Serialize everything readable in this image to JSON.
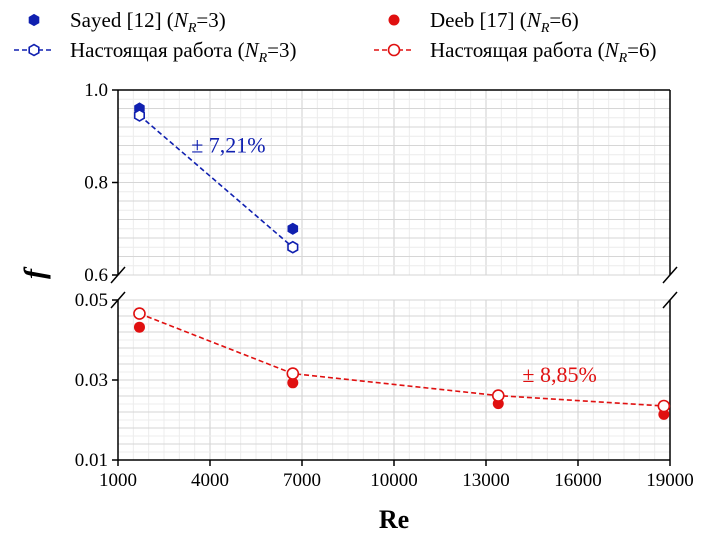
{
  "chart_data": {
    "type": "scatter",
    "xlabel": "Re",
    "ylabel": "f",
    "x_ticks": [
      "1000",
      "4000",
      "7000",
      "10000",
      "13000",
      "16000",
      "19000"
    ],
    "upper_panel": {
      "ylim": [
        0.6,
        1.0
      ],
      "y_ticks": [
        "0.6",
        "0.8",
        "1.0"
      ]
    },
    "lower_panel": {
      "ylim": [
        0.01,
        0.05
      ],
      "y_ticks": [
        "0.01",
        "0.03",
        "0.05"
      ]
    },
    "xlim": [
      1000,
      19000
    ],
    "grid": true,
    "legend_position": "top",
    "series": [
      {
        "name": "Sayed [12] (N_R=3)",
        "legend_main": "Sayed [12] (",
        "legend_var": "N",
        "legend_sub": "R",
        "legend_end": "=3)",
        "color": "#1020b0",
        "marker": "filled-hexagon",
        "line": "none",
        "panel": "upper",
        "points": [
          {
            "x": 1700,
            "y": 0.96
          },
          {
            "x": 6700,
            "y": 0.7
          }
        ]
      },
      {
        "name": "Настоящая работа (N_R=3)",
        "legend_main": "Настоящая работа (",
        "legend_var": "N",
        "legend_sub": "R",
        "legend_end": "=3)",
        "color": "#1020b0",
        "marker": "open-hexagon",
        "line": "dashed",
        "panel": "upper",
        "points": [
          {
            "x": 1700,
            "y": 0.945
          },
          {
            "x": 6700,
            "y": 0.66
          }
        ]
      },
      {
        "name": "Deeb [17] (N_R=6)",
        "legend_main": "Deeb [17] (",
        "legend_var": "N",
        "legend_sub": "R",
        "legend_end": "=6)",
        "color": "#e01010",
        "marker": "filled-circle",
        "line": "none",
        "panel": "lower",
        "points": [
          {
            "x": 1700,
            "y": 0.0432
          },
          {
            "x": 6700,
            "y": 0.0293
          },
          {
            "x": 13400,
            "y": 0.0241
          },
          {
            "x": 18800,
            "y": 0.0214
          }
        ]
      },
      {
        "name": "Настоящая работа (N_R=6)",
        "legend_main": "Настоящая работа (",
        "legend_var": "N",
        "legend_sub": "R",
        "legend_end": "=6)",
        "color": "#e01010",
        "marker": "open-circle",
        "line": "dashed",
        "panel": "lower",
        "points": [
          {
            "x": 1700,
            "y": 0.0466
          },
          {
            "x": 6700,
            "y": 0.0316
          },
          {
            "x": 13400,
            "y": 0.0261
          },
          {
            "x": 18800,
            "y": 0.0235
          }
        ]
      }
    ],
    "annotations": [
      {
        "text": "± 7,21%",
        "color": "#1020b0",
        "panel": "upper",
        "x": 4600,
        "y": 0.865
      },
      {
        "text": "± 8,85%",
        "color": "#e01010",
        "panel": "lower",
        "x": 15400,
        "y": 0.0295
      }
    ]
  }
}
